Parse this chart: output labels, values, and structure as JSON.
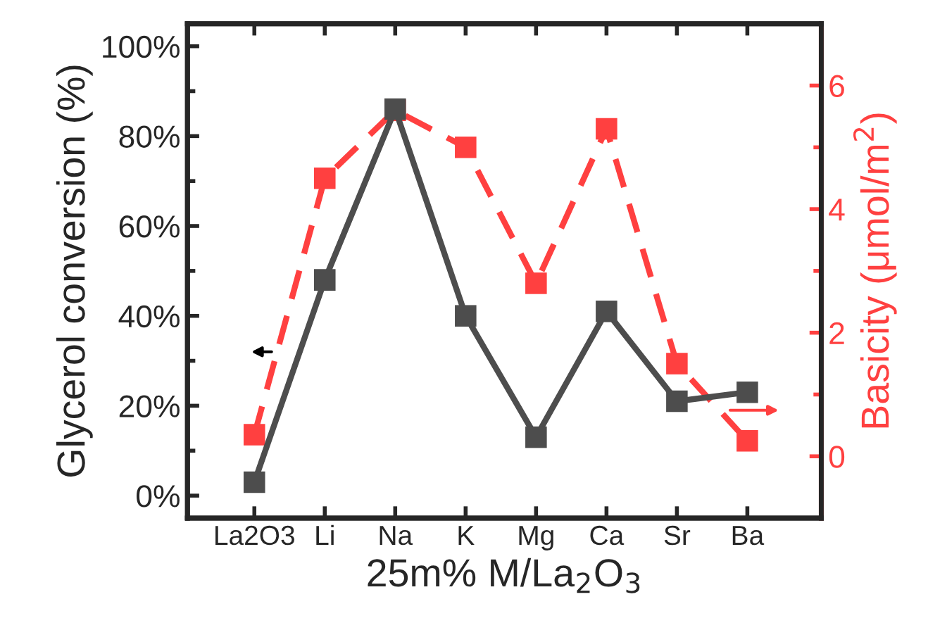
{
  "chart_data": {
    "type": "line",
    "xlabel": "25m% M/La$_{2}$O$_{3}$",
    "ylabel": "Glycerol conversion (%)",
    "y2label": "Basicity (μmol/m$^{2}$)",
    "categories": [
      "La2O3",
      "Li",
      "Na",
      "K",
      "Mg",
      "Ca",
      "Sr",
      "Ba"
    ],
    "series": [
      {
        "color": "#4d4d4d",
        "values": [
          3,
          48,
          86,
          40,
          13,
          41,
          21,
          23
        ],
        "line_style": "solid",
        "marker": "square"
      },
      {
        "color": "#ff4040",
        "values": [
          0.35,
          4.5,
          5.6,
          5.0,
          2.8,
          5.3,
          1.5,
          0.25
        ],
        "axis": "y2",
        "line_style": "dashed",
        "marker": "square"
      }
    ],
    "ylim": [
      -5,
      105
    ],
    "yticks": [
      {
        "value": 0,
        "label": "0%"
      },
      {
        "value": 20,
        "label": "20%"
      },
      {
        "value": 40,
        "label": "40%"
      },
      {
        "value": 60,
        "label": "60%"
      },
      {
        "value": 80,
        "label": "80%"
      },
      {
        "value": 100,
        "label": "100%"
      }
    ],
    "y2lim": [
      -1,
      7
    ],
    "y2ticks": [
      0,
      2,
      4,
      6
    ],
    "grid": false,
    "legend": false
  }
}
